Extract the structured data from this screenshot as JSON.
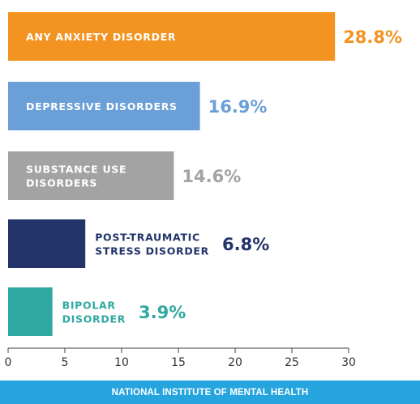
{
  "chart_data": {
    "type": "bar",
    "orientation": "horizontal",
    "categories": [
      [
        "ANY ANXIETY DISORDER"
      ],
      [
        "DEPRESSIVE DISORDERS"
      ],
      [
        "SUBSTANCE USE",
        "DISORDERS"
      ],
      [
        "POST-TRAUMATIC",
        "STRESS DISORDER"
      ],
      [
        "BIPOLAR",
        "DISORDER"
      ]
    ],
    "values": [
      28.8,
      16.9,
      14.6,
      6.8,
      3.9
    ],
    "data_labels": [
      "28.8%",
      "16.9%",
      "14.6%",
      "6.8%",
      "3.9%"
    ],
    "colors": [
      "#f39321",
      "#6a9fd8",
      "#a3a3a3",
      "#22336a",
      "#2fa8a1"
    ],
    "label_placement": [
      "inside",
      "inside",
      "inside",
      "outside",
      "outside"
    ],
    "label_text_colors": [
      "#ffffff",
      "#ffffff",
      "#ffffff",
      "#22336a",
      "#2fa8a1"
    ],
    "xlim": [
      0,
      30
    ],
    "xticks": [
      "0",
      "5",
      "10",
      "15",
      "20",
      "25",
      "30"
    ],
    "grid": false
  },
  "footer": {
    "text": "NATIONAL INSTITUTE OF MENTAL HEALTH"
  }
}
